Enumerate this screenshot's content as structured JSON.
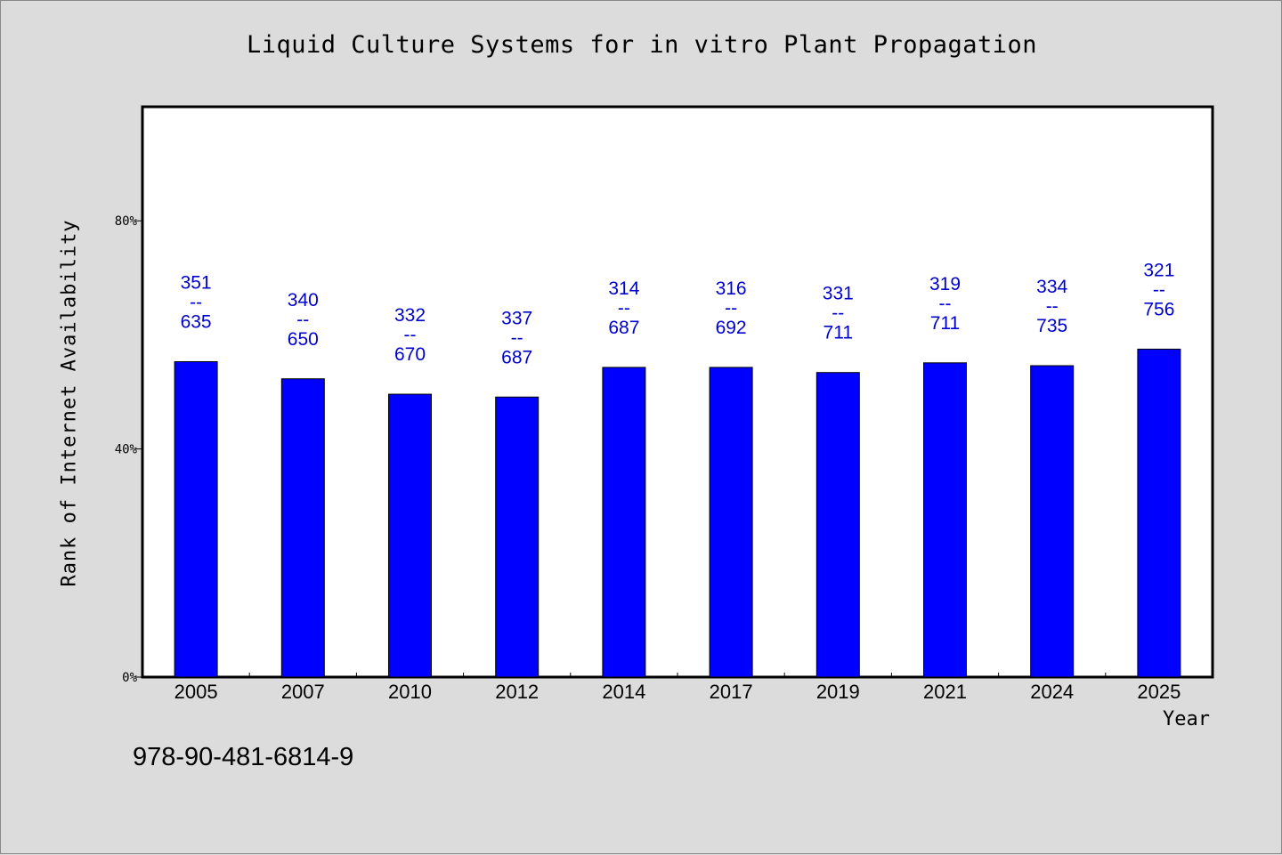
{
  "chart_data": {
    "type": "bar",
    "title": "Liquid Culture Systems for in vitro Plant Propagation",
    "xlabel": "Year",
    "ylabel": "Rank of Internet Availability",
    "categories": [
      "2005",
      "2007",
      "2010",
      "2012",
      "2014",
      "2017",
      "2019",
      "2021",
      "2024",
      "2025"
    ],
    "values": [
      55.3,
      52.3,
      49.6,
      49.1,
      54.3,
      54.3,
      53.4,
      55.1,
      54.6,
      57.5
    ],
    "data_labels": [
      {
        "top": "351",
        "sep": "--",
        "bottom": "635"
      },
      {
        "top": "340",
        "sep": "--",
        "bottom": "650"
      },
      {
        "top": "332",
        "sep": "--",
        "bottom": "670"
      },
      {
        "top": "337",
        "sep": "--",
        "bottom": "687"
      },
      {
        "top": "314",
        "sep": "--",
        "bottom": "687"
      },
      {
        "top": "316",
        "sep": "--",
        "bottom": "692"
      },
      {
        "top": "331",
        "sep": "--",
        "bottom": "711"
      },
      {
        "top": "319",
        "sep": "--",
        "bottom": "711"
      },
      {
        "top": "334",
        "sep": "--",
        "bottom": "735"
      },
      {
        "top": "321",
        "sep": "--",
        "bottom": "756"
      }
    ],
    "ylim": [
      0,
      100
    ],
    "yticks": [
      0,
      40,
      80
    ],
    "ytick_labels": [
      "0%",
      "40%",
      "80%"
    ],
    "grid": false,
    "colors": {
      "bar": "#0000ff",
      "label": "#0000cc",
      "background": "#dcdcdc",
      "plot_bg": "#ffffff"
    }
  },
  "footer": {
    "isbn": "978-90-481-6814-9"
  }
}
